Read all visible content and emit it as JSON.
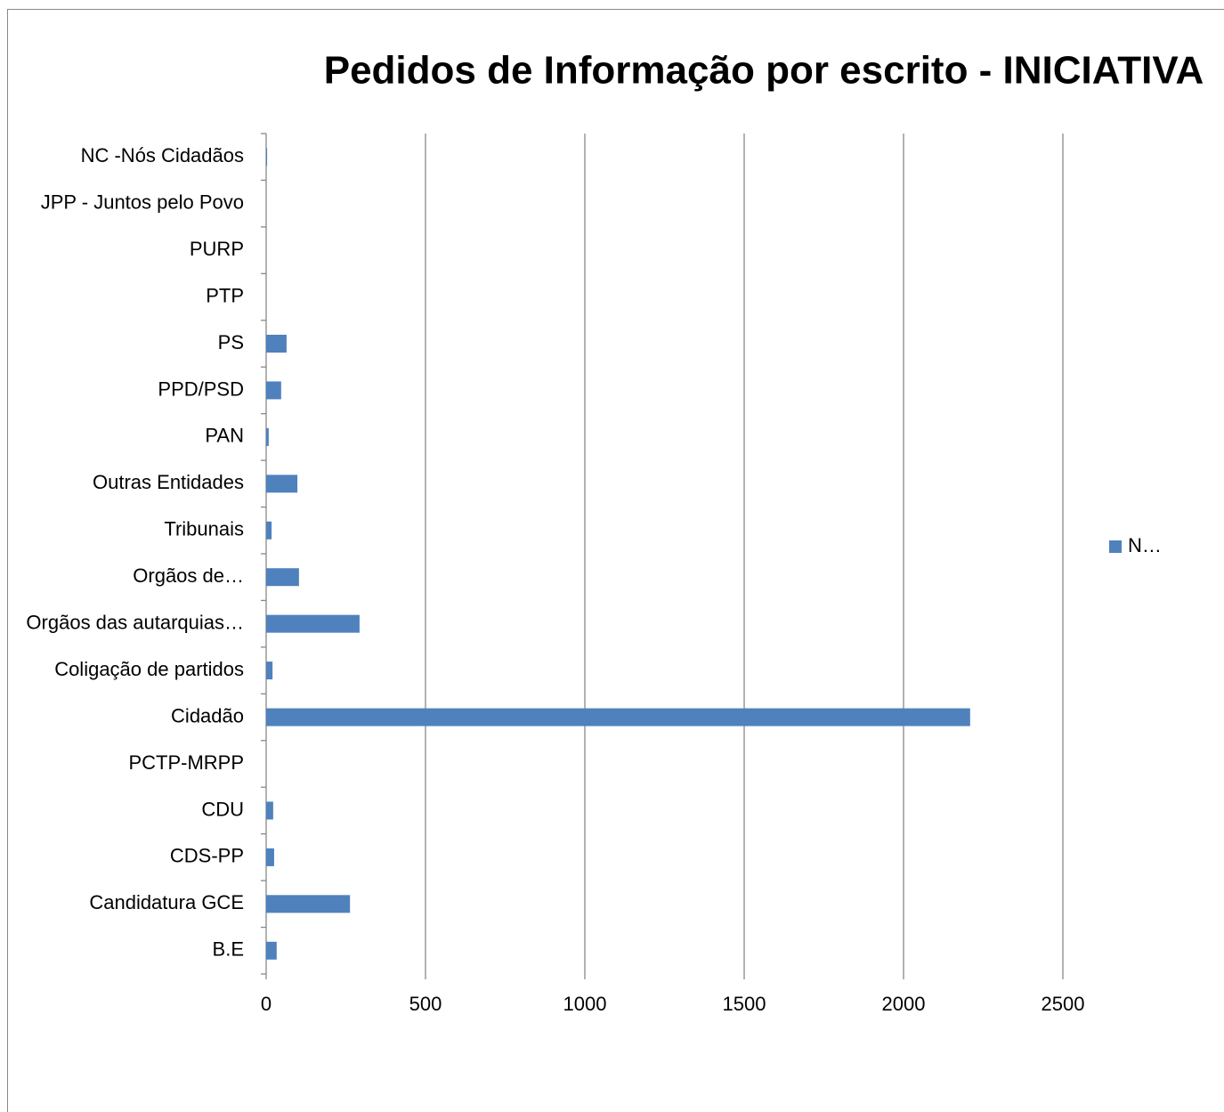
{
  "chart_data": {
    "type": "bar",
    "orientation": "horizontal",
    "title": "Pedidos de Informação por escrito - INICIATIVA",
    "categories": [
      "B.E",
      "Candidatura GCE",
      "CDS-PP",
      "CDU",
      "PCTP-MRPP",
      "Cidadão",
      "Coligação de partidos",
      "Orgãos das autarquias…",
      "Orgãos de…",
      "Tribunais",
      "Outras Entidades",
      "PAN",
      "PPD/PSD",
      "PS",
      "PTP",
      "PURP",
      "JPP - Juntos pelo Povo",
      "NC -Nós Cidadãos"
    ],
    "series": [
      {
        "name": "N…",
        "color": "#4f81bd",
        "values": [
          33,
          263,
          25,
          22,
          0,
          2209,
          20,
          293,
          103,
          17,
          98,
          8,
          47,
          64,
          0,
          0,
          0,
          3
        ]
      }
    ],
    "xlim": [
      0,
      2500
    ],
    "xticks": [
      0,
      500,
      1000,
      1500,
      2000,
      2500
    ],
    "grid": true,
    "legend": "right"
  }
}
